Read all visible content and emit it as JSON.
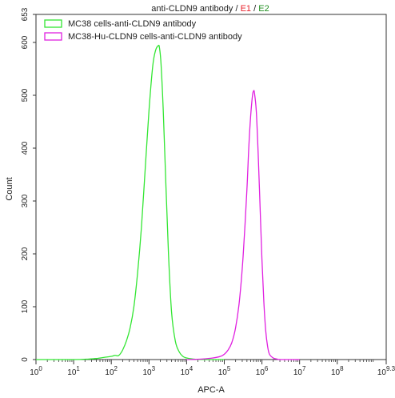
{
  "chart_data": {
    "type": "line",
    "title": {
      "main": "anti-CLDN9 antibody",
      "sep1": " / ",
      "e1": "E1",
      "sep2": " / ",
      "e2": "E2",
      "e1_color": "#e8202a",
      "e2_color": "#1f8f1f"
    },
    "xlabel": "APC-A",
    "ylabel": "Count",
    "x_scale": "log10",
    "xlim": [
      1,
      1995262315
    ],
    "ylim": [
      0,
      653
    ],
    "x_ticks": [
      {
        "base": "10",
        "exp": "0",
        "value": 1
      },
      {
        "base": "10",
        "exp": "1",
        "value": 10
      },
      {
        "base": "10",
        "exp": "2",
        "value": 100
      },
      {
        "base": "10",
        "exp": "3",
        "value": 1000
      },
      {
        "base": "10",
        "exp": "4",
        "value": 10000
      },
      {
        "base": "10",
        "exp": "5",
        "value": 100000
      },
      {
        "base": "10",
        "exp": "6",
        "value": 1000000
      },
      {
        "base": "10",
        "exp": "7",
        "value": 10000000
      },
      {
        "base": "10",
        "exp": "8",
        "value": 100000000
      },
      {
        "base": "10",
        "exp": "9.3",
        "value": 1995262315
      }
    ],
    "y_ticks": [
      {
        "label": "0",
        "value": 0
      },
      {
        "label": "100",
        "value": 100
      },
      {
        "label": "200",
        "value": 200
      },
      {
        "label": "300",
        "value": 300
      },
      {
        "label": "400",
        "value": 400
      },
      {
        "label": "500",
        "value": 500
      },
      {
        "label": "600",
        "value": 600
      },
      {
        "label": "653",
        "value": 653
      }
    ],
    "legend": "top-left",
    "series": [
      {
        "name": "MC38 cells-anti-CLDN9 antibody",
        "color": "#33e633",
        "x": [
          1,
          10,
          25,
          40,
          63,
          100,
          126,
          150,
          170,
          200,
          251,
          316,
          398,
          501,
          631,
          794,
          1000,
          1259,
          1500,
          1778,
          1900,
          2089,
          2400,
          2818,
          3300,
          3981,
          5012,
          6310,
          7943,
          10000,
          15000,
          25119,
          100000
        ],
        "y": [
          0,
          0,
          1,
          2,
          4,
          6,
          8,
          7,
          10,
          18,
          35,
          60,
          100,
          165,
          250,
          360,
          470,
          555,
          585,
          594,
          590,
          560,
          470,
          330,
          200,
          90,
          35,
          15,
          6,
          3,
          1,
          0,
          0
        ]
      },
      {
        "name": "MC38-Hu-CLDN9 cells-anti-CLDN9 antibody",
        "color": "#e020e0",
        "x": [
          10000,
          25119,
          50119,
          79433,
          100000,
          125893,
          158489,
          199526,
          251189,
          316228,
          398107,
          446684,
          501187,
          562341,
          600000,
          630957,
          707946,
          794328,
          891251,
          1000000,
          1122018,
          1258925,
          1412538,
          1584893,
          1995262,
          2511886,
          3162278,
          10000000
        ],
        "y": [
          0,
          1,
          3,
          6,
          10,
          18,
          32,
          60,
          110,
          195,
          320,
          400,
          460,
          500,
          508,
          505,
          470,
          390,
          290,
          190,
          110,
          55,
          25,
          10,
          3,
          1,
          0,
          0
        ]
      }
    ]
  }
}
